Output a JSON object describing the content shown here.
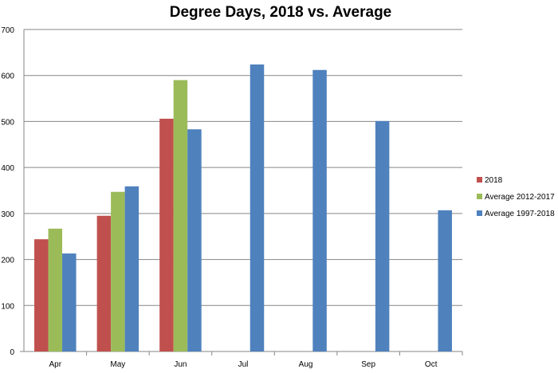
{
  "chart_data": {
    "type": "bar",
    "title": "Degree Days, 2018 vs. Average",
    "xlabel": "",
    "ylabel": "",
    "ylim": [
      0,
      700
    ],
    "yticks": [
      0,
      100,
      200,
      300,
      400,
      500,
      600,
      700
    ],
    "grid": true,
    "legend_position": "right",
    "categories": [
      "Apr",
      "May",
      "Jun",
      "Jul",
      "Aug",
      "Sep",
      "Oct"
    ],
    "series": [
      {
        "name": "2018",
        "color": "#c0504d",
        "values": [
          244,
          295,
          506,
          null,
          null,
          null,
          null
        ]
      },
      {
        "name": "Average 2012-2017",
        "color": "#9bbb59",
        "values": [
          267,
          347,
          590,
          null,
          null,
          null,
          null
        ]
      },
      {
        "name": "Average 1997-2018",
        "color": "#4f81bd",
        "values": [
          213,
          359,
          483,
          624,
          612,
          501,
          307
        ]
      }
    ]
  }
}
